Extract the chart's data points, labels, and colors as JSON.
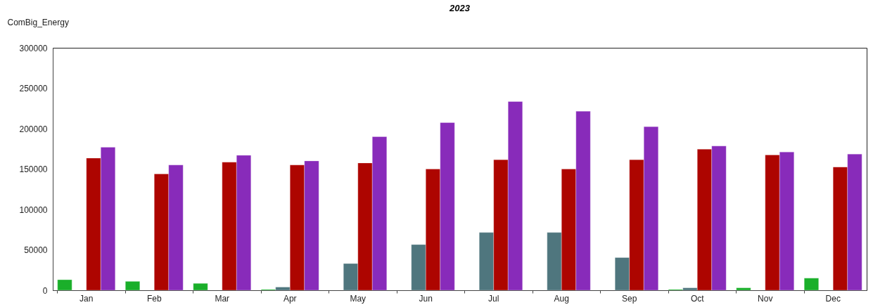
{
  "chart_data": {
    "type": "bar",
    "title": "2023",
    "ylabel": "ComBig_Energy",
    "categories": [
      "Jan",
      "Feb",
      "Mar",
      "Apr",
      "May",
      "Jun",
      "Jul",
      "Aug",
      "Sep",
      "Oct",
      "Nov",
      "Dec"
    ],
    "series": [
      {
        "color": "#1aaf2a",
        "values": [
          13000,
          11000,
          8500,
          1000,
          null,
          null,
          null,
          null,
          null,
          1000,
          3000,
          15000
        ]
      },
      {
        "color": "#4f767e",
        "values": [
          null,
          null,
          null,
          4000,
          33000,
          56500,
          71500,
          71500,
          40500,
          3000,
          null,
          null
        ]
      },
      {
        "color": "#ad0500",
        "values": [
          163500,
          144000,
          158500,
          155000,
          157500,
          150000,
          161500,
          150000,
          161500,
          174500,
          167500,
          152500
        ]
      },
      {
        "color": "#882bba",
        "values": [
          177000,
          155000,
          167000,
          160000,
          190000,
          207500,
          233500,
          221500,
          202500,
          178500,
          171000,
          168500
        ]
      }
    ],
    "ylim": [
      0,
      300000
    ],
    "yticks": [
      0,
      50000,
      100000,
      150000,
      200000,
      250000,
      300000
    ],
    "grid": false,
    "legend": false
  }
}
